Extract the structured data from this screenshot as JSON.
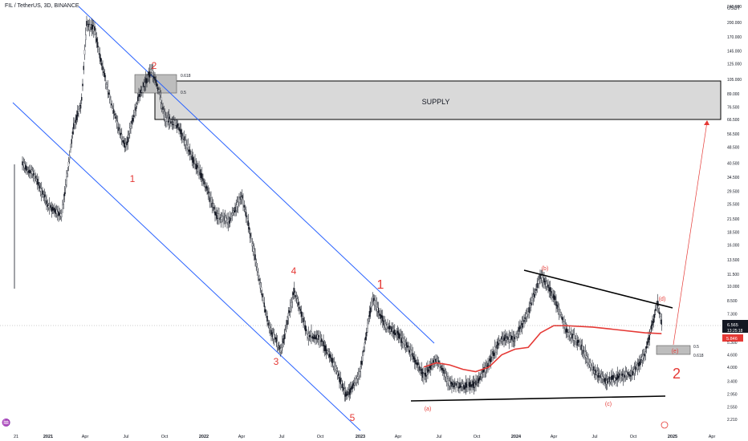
{
  "symbol_line": "FIL / TetherUS, 3D, BINANCE",
  "currency": "USDT",
  "colors": {
    "candle": "#131722",
    "channel": "#2962ff",
    "wave_label": "#e53935",
    "ma": "#e53935",
    "supply_fill": "#d9d9d9",
    "trendline": "#000000"
  },
  "chart_data": {
    "type": "candlestick",
    "title": "FIL / TetherUS, 3D, BINANCE",
    "x_tick_labels": [
      "21",
      "2021",
      "Apr",
      "Jul",
      "Oct",
      "2022",
      "Apr",
      "Jul",
      "Oct",
      "2023",
      "Apr",
      "Jul",
      "Oct",
      "2024",
      "Apr",
      "Jul",
      "Oct",
      "2025",
      "Apr"
    ],
    "y_scale": "log",
    "y_range": [
      2.05,
      255
    ],
    "y_tick_labels": [
      "240.000",
      "200.000",
      "170.000",
      "145.000",
      "125.000",
      "105.000",
      "89.000",
      "76.500",
      "66.500",
      "56.500",
      "48.500",
      "40.500",
      "34.500",
      "29.500",
      "25.500",
      "21.500",
      "18.500",
      "16.000",
      "13.500",
      "11.500",
      "10.000",
      "8.500",
      "7.300",
      "6.200",
      "5.300",
      "4.600",
      "4.000",
      "3.400",
      "2.950",
      "2.550",
      "2.210"
    ],
    "price_labels": {
      "last": "6.565",
      "countdown": "13:25:18",
      "ma_value": "5.846"
    },
    "price_path": [
      [
        "2020-11",
        40
      ],
      [
        "2020-12",
        35
      ],
      [
        "2021-01",
        25
      ],
      [
        "2021-02",
        22
      ],
      [
        "2021-03",
        60
      ],
      [
        "2021-03-20",
        80
      ],
      [
        "2021-04",
        195
      ],
      [
        "2021-04-20",
        185
      ],
      [
        "2021-05",
        140
      ],
      [
        "2021-06",
        75
      ],
      [
        "2021-07",
        48
      ],
      [
        "2021-08",
        85
      ],
      [
        "2021-09",
        118
      ],
      [
        "2021-09-20",
        88
      ],
      [
        "2021-10",
        68
      ],
      [
        "2021-11",
        62
      ],
      [
        "2021-12",
        45
      ],
      [
        "2022-01",
        33
      ],
      [
        "2022-02",
        22
      ],
      [
        "2022-03",
        21
      ],
      [
        "2022-04",
        28
      ],
      [
        "2022-05",
        14
      ],
      [
        "2022-06",
        6.5
      ],
      [
        "2022-07",
        4.8
      ],
      [
        "2022-08",
        9.5
      ],
      [
        "2022-09",
        5.8
      ],
      [
        "2022-10",
        5.5
      ],
      [
        "2022-11",
        4.2
      ],
      [
        "2022-12",
        2.9
      ],
      [
        "2023-01",
        3.6
      ],
      [
        "2023-02",
        8.8
      ],
      [
        "2023-03",
        6.5
      ],
      [
        "2023-04",
        5.8
      ],
      [
        "2023-05",
        4.8
      ],
      [
        "2023-06",
        3.6
      ],
      [
        "2023-07",
        4.4
      ],
      [
        "2023-08",
        3.3
      ],
      [
        "2023-09",
        3.2
      ],
      [
        "2023-10",
        3.3
      ],
      [
        "2023-11",
        4.2
      ],
      [
        "2023-12",
        5.6
      ],
      [
        "2024-01",
        5.5
      ],
      [
        "2024-02",
        7.5
      ],
      [
        "2024-03",
        11.2
      ],
      [
        "2024-04",
        9
      ],
      [
        "2024-05",
        6
      ],
      [
        "2024-06",
        5.2
      ],
      [
        "2024-07",
        3.9
      ],
      [
        "2024-08",
        3.4
      ],
      [
        "2024-09",
        3.6
      ],
      [
        "2024-10",
        3.7
      ],
      [
        "2024-11",
        4.6
      ],
      [
        "2024-12-01",
        8.4
      ],
      [
        "2024-12-10",
        6.565
      ]
    ],
    "moving_average": [
      [
        "2023-06",
        4.0
      ],
      [
        "2023-07",
        4.2
      ],
      [
        "2023-08",
        4.1
      ],
      [
        "2023-09",
        3.9
      ],
      [
        "2023-10",
        3.8
      ],
      [
        "2023-11",
        4.0
      ],
      [
        "2023-12",
        4.6
      ],
      [
        "2024-01",
        4.9
      ],
      [
        "2024-02",
        5.0
      ],
      [
        "2024-03",
        5.9
      ],
      [
        "2024-04",
        6.4
      ],
      [
        "2024-05",
        6.4
      ],
      [
        "2024-07",
        6.3
      ],
      [
        "2024-09",
        6.1
      ],
      [
        "2024-11",
        5.9
      ],
      [
        "2024-12-10",
        5.846
      ]
    ],
    "annotations": {
      "zone_label": "SUPPLY",
      "fib_top": "0.618",
      "fib_bottom": "0.5",
      "impulse_labels": [
        "1",
        "2",
        "3",
        "4",
        "5"
      ],
      "next_labels": [
        "1",
        "2"
      ],
      "corrective_labels": [
        "(a)",
        "(b)",
        "(c)",
        "(d)",
        "(e)"
      ]
    }
  }
}
